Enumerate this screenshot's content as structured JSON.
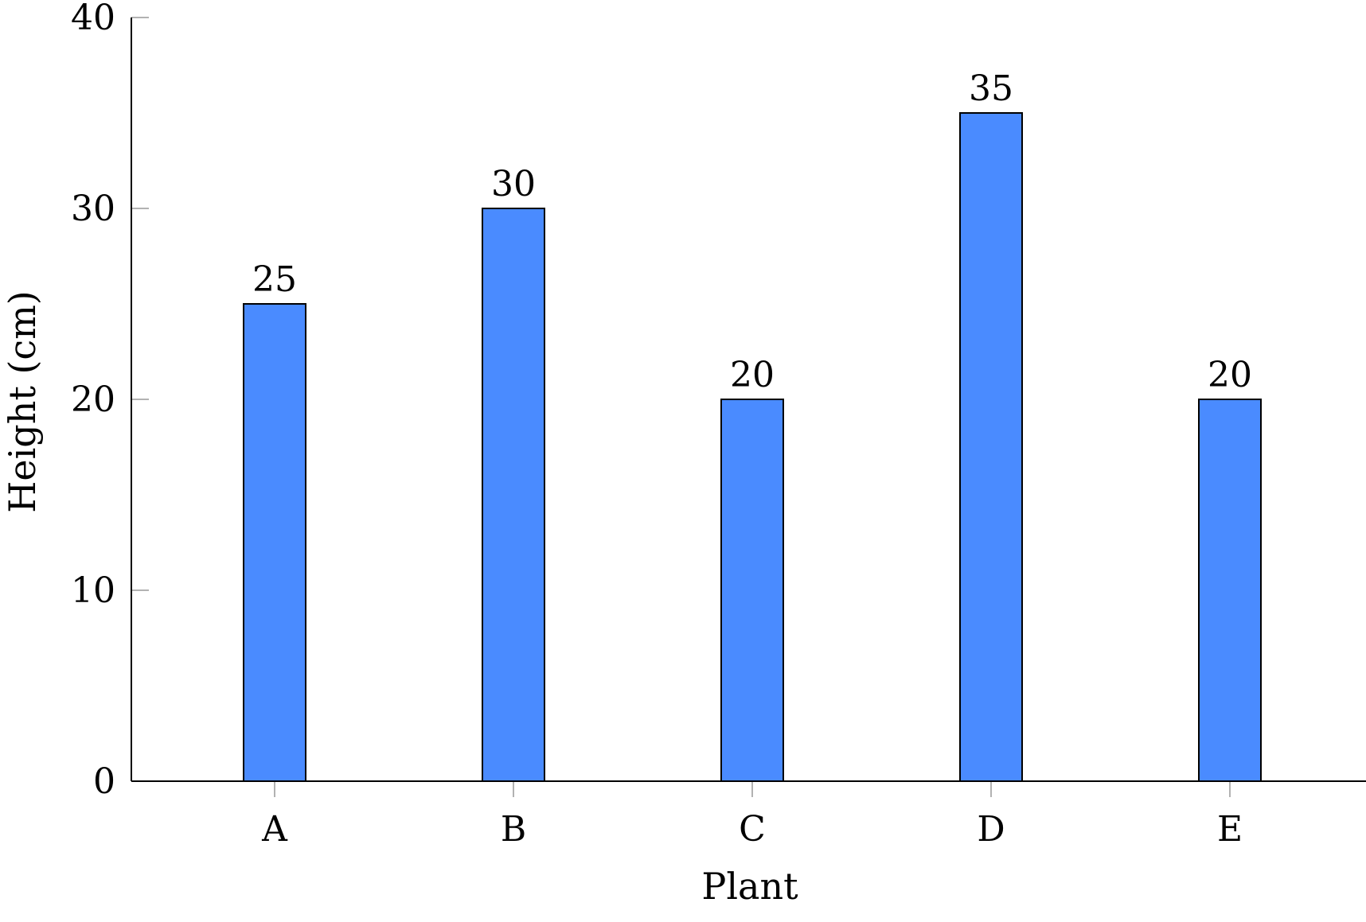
{
  "chart_data": {
    "type": "bar",
    "categories": [
      "A",
      "B",
      "C",
      "D",
      "E"
    ],
    "values": [
      25,
      30,
      20,
      35,
      20
    ],
    "data_labels": [
      "25",
      "30",
      "20",
      "35",
      "20"
    ],
    "xlabel": "Plant",
    "ylabel": "Height (cm)",
    "ylim": [
      0,
      40
    ],
    "yticks": [
      0,
      10,
      20,
      30,
      40
    ],
    "ytick_labels": [
      "0",
      "10",
      "20",
      "30",
      "40"
    ],
    "grid": false,
    "legend": "none",
    "colors": {
      "bar_fill": "#4a8bff",
      "bar_stroke": "#000000",
      "axis": "#000000",
      "tick": "#999999"
    }
  }
}
